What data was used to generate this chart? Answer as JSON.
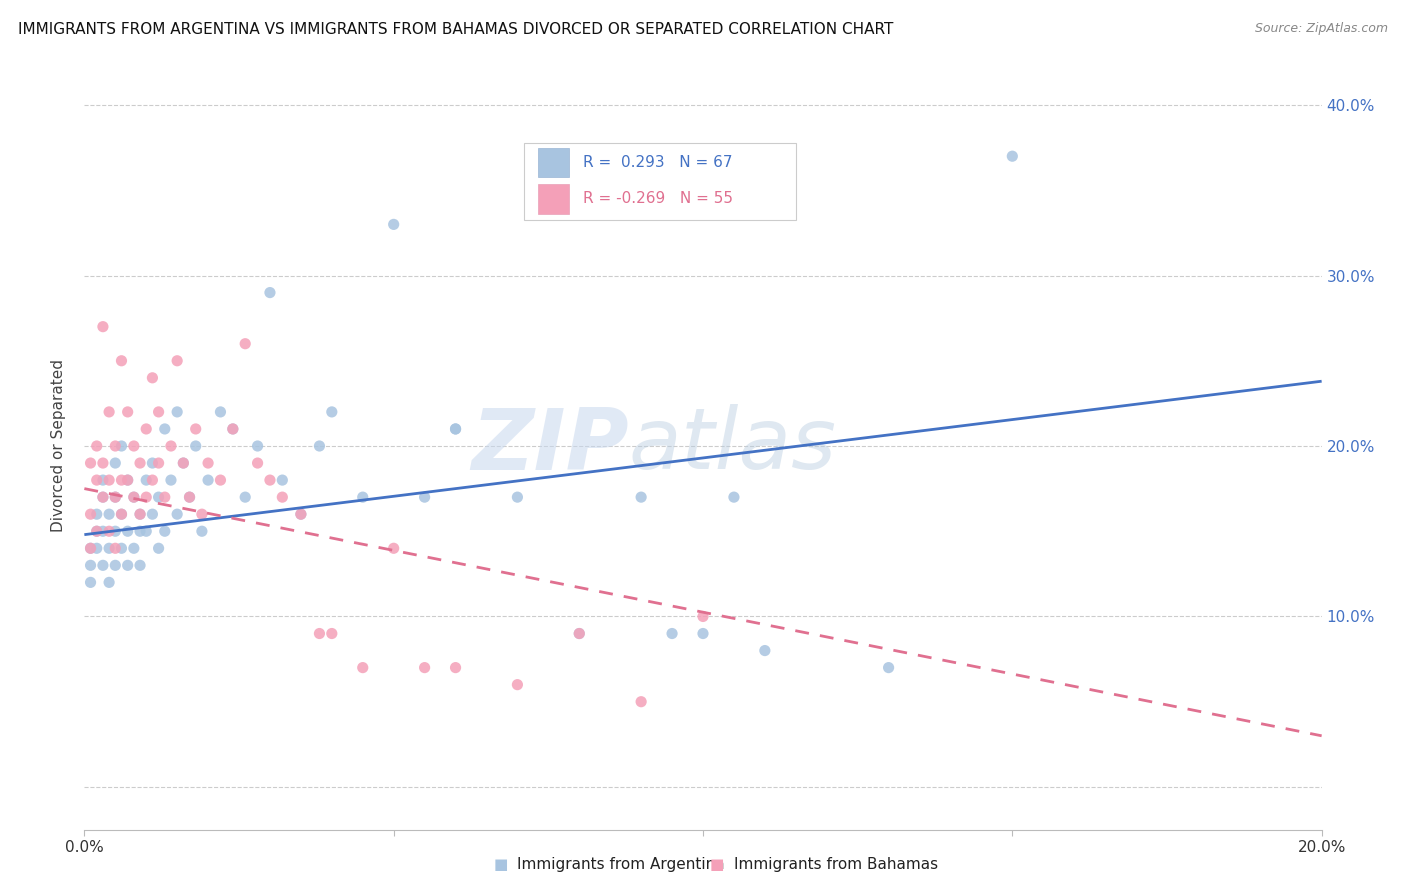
{
  "title": "IMMIGRANTS FROM ARGENTINA VS IMMIGRANTS FROM BAHAMAS DIVORCED OR SEPARATED CORRELATION CHART",
  "source": "Source: ZipAtlas.com",
  "ylabel": "Divorced or Separated",
  "x_min": 0.0,
  "x_max": 0.2,
  "y_min": -0.025,
  "y_max": 0.425,
  "x_ticks": [
    0.0,
    0.05,
    0.1,
    0.15,
    0.2
  ],
  "x_tick_labels": [
    "0.0%",
    "",
    "",
    "",
    "20.0%"
  ],
  "y_ticks": [
    0.0,
    0.1,
    0.2,
    0.3,
    0.4
  ],
  "y_tick_labels_right": [
    "",
    "10.0%",
    "20.0%",
    "30.0%",
    "40.0%"
  ],
  "legend_line1": "R =  0.293   N = 67",
  "legend_line2": "R = -0.269   N = 55",
  "color_argentina": "#a8c4e0",
  "color_bahamas": "#f4a0b8",
  "line_color_argentina": "#4472c4",
  "line_color_bahamas": "#e07090",
  "argentina_line_y0": 0.148,
  "argentina_line_y1": 0.238,
  "bahamas_line_y0": 0.175,
  "bahamas_line_y1": 0.03,
  "watermark_zip": "ZIP",
  "watermark_atlas": "atlas",
  "argentina_x": [
    0.001,
    0.001,
    0.001,
    0.002,
    0.002,
    0.002,
    0.003,
    0.003,
    0.003,
    0.003,
    0.004,
    0.004,
    0.004,
    0.005,
    0.005,
    0.005,
    0.005,
    0.006,
    0.006,
    0.006,
    0.007,
    0.007,
    0.007,
    0.008,
    0.008,
    0.009,
    0.009,
    0.009,
    0.01,
    0.01,
    0.011,
    0.011,
    0.012,
    0.012,
    0.013,
    0.013,
    0.014,
    0.015,
    0.015,
    0.016,
    0.017,
    0.018,
    0.019,
    0.02,
    0.022,
    0.024,
    0.026,
    0.028,
    0.03,
    0.032,
    0.035,
    0.038,
    0.04,
    0.045,
    0.05,
    0.055,
    0.06,
    0.07,
    0.08,
    0.09,
    0.1,
    0.11,
    0.13,
    0.15,
    0.095,
    0.105,
    0.06
  ],
  "argentina_y": [
    0.14,
    0.13,
    0.12,
    0.16,
    0.15,
    0.14,
    0.18,
    0.17,
    0.15,
    0.13,
    0.16,
    0.14,
    0.12,
    0.19,
    0.17,
    0.15,
    0.13,
    0.2,
    0.16,
    0.14,
    0.18,
    0.15,
    0.13,
    0.17,
    0.14,
    0.16,
    0.15,
    0.13,
    0.18,
    0.15,
    0.19,
    0.16,
    0.17,
    0.14,
    0.21,
    0.15,
    0.18,
    0.22,
    0.16,
    0.19,
    0.17,
    0.2,
    0.15,
    0.18,
    0.22,
    0.21,
    0.17,
    0.2,
    0.29,
    0.18,
    0.16,
    0.2,
    0.22,
    0.17,
    0.33,
    0.17,
    0.21,
    0.17,
    0.09,
    0.17,
    0.09,
    0.08,
    0.07,
    0.37,
    0.09,
    0.17,
    0.21
  ],
  "bahamas_x": [
    0.001,
    0.001,
    0.001,
    0.002,
    0.002,
    0.002,
    0.003,
    0.003,
    0.003,
    0.004,
    0.004,
    0.004,
    0.005,
    0.005,
    0.005,
    0.006,
    0.006,
    0.006,
    0.007,
    0.007,
    0.008,
    0.008,
    0.009,
    0.009,
    0.01,
    0.01,
    0.011,
    0.011,
    0.012,
    0.012,
    0.013,
    0.014,
    0.015,
    0.016,
    0.017,
    0.018,
    0.019,
    0.02,
    0.022,
    0.024,
    0.026,
    0.028,
    0.03,
    0.032,
    0.035,
    0.038,
    0.04,
    0.045,
    0.05,
    0.055,
    0.06,
    0.07,
    0.08,
    0.09,
    0.1
  ],
  "bahamas_y": [
    0.19,
    0.16,
    0.14,
    0.2,
    0.18,
    0.15,
    0.27,
    0.19,
    0.17,
    0.22,
    0.18,
    0.15,
    0.2,
    0.17,
    0.14,
    0.25,
    0.18,
    0.16,
    0.22,
    0.18,
    0.2,
    0.17,
    0.19,
    0.16,
    0.21,
    0.17,
    0.24,
    0.18,
    0.22,
    0.19,
    0.17,
    0.2,
    0.25,
    0.19,
    0.17,
    0.21,
    0.16,
    0.19,
    0.18,
    0.21,
    0.26,
    0.19,
    0.18,
    0.17,
    0.16,
    0.09,
    0.09,
    0.07,
    0.14,
    0.07,
    0.07,
    0.06,
    0.09,
    0.05,
    0.1
  ]
}
